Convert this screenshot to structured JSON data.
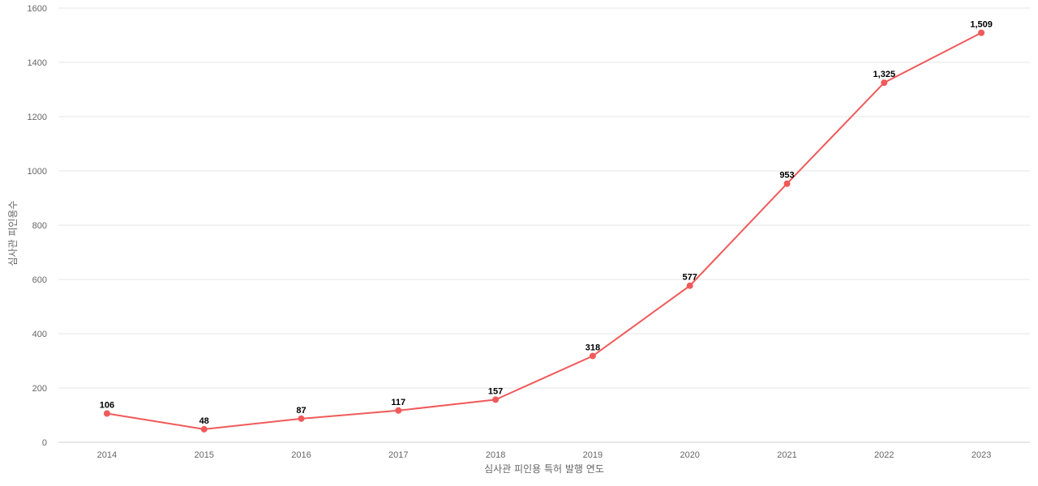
{
  "chart_data": {
    "type": "line",
    "title": "",
    "xlabel": "심사관 피인용 특허 발행 연도",
    "ylabel": "심사관 피인용수",
    "categories": [
      "2014",
      "2015",
      "2016",
      "2017",
      "2018",
      "2019",
      "2020",
      "2021",
      "2022",
      "2023"
    ],
    "series": [
      {
        "values": [
          106,
          48,
          87,
          117,
          157,
          318,
          577,
          953,
          1325,
          1509
        ],
        "data_labels": [
          "106",
          "48",
          "87",
          "117",
          "157",
          "318",
          "577",
          "953",
          "1,325",
          "1,509"
        ],
        "color": "#f05a5a"
      }
    ],
    "ylim": [
      0,
      1600
    ],
    "yticks": [
      "0",
      "200",
      "400",
      "600",
      "800",
      "1000",
      "1200",
      "1400",
      "1600"
    ],
    "grid": true,
    "legend": "none"
  }
}
